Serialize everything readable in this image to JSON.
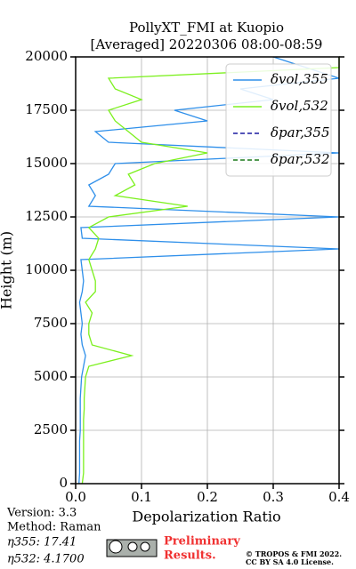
{
  "chart_data": {
    "type": "line",
    "title": "PollyXT_FMI at Kuopio",
    "subtitle": "[Averaged] 20220306 08:00-08:59",
    "xlabel": "Depolarization Ratio",
    "ylabel": "Height (m)",
    "y": [
      0,
      500,
      1000,
      1500,
      2000,
      2500,
      3000,
      3500,
      4000,
      4500,
      5000,
      5500,
      6000,
      6500,
      7000,
      7500,
      8000,
      8500,
      9000,
      9500,
      10000,
      10500,
      11000,
      11500,
      12000,
      12500,
      13000,
      13500,
      14000,
      14500,
      15000,
      15500,
      16000,
      16500,
      17000,
      17500,
      18000,
      18500,
      19000,
      19500,
      20000
    ],
    "series": [
      {
        "name": "δvol,355",
        "color": "#2e8fea",
        "dashed": false,
        "values": [
          0.005,
          0.006,
          0.006,
          0.006,
          0.006,
          0.007,
          0.007,
          0.007,
          0.007,
          0.008,
          0.009,
          0.012,
          0.015,
          0.01,
          0.008,
          0.01,
          0.008,
          0.006,
          0.01,
          0.012,
          0.01,
          0.008,
          0.4,
          0.01,
          0.008,
          0.4,
          0.02,
          0.03,
          0.02,
          0.05,
          0.06,
          0.4,
          0.05,
          0.03,
          0.2,
          0.15,
          0.3,
          0.25,
          0.4,
          0.35,
          0.3
        ]
      },
      {
        "name": "δvol,532",
        "color": "#7cf01e",
        "dashed": false,
        "values": [
          0.01,
          0.012,
          0.012,
          0.012,
          0.012,
          0.012,
          0.012,
          0.013,
          0.013,
          0.014,
          0.015,
          0.02,
          0.085,
          0.025,
          0.02,
          0.02,
          0.025,
          0.015,
          0.03,
          0.03,
          0.025,
          0.02,
          0.03,
          0.035,
          0.02,
          0.05,
          0.17,
          0.06,
          0.09,
          0.08,
          0.12,
          0.2,
          0.1,
          0.08,
          0.06,
          0.05,
          0.1,
          0.06,
          0.05,
          0.4,
          0.4
        ]
      },
      {
        "name": "δpar,355",
        "color": "#1a1aa0",
        "dashed": true,
        "values": [
          null,
          null,
          null,
          null,
          null,
          null,
          null,
          null,
          null,
          null,
          null,
          null,
          null,
          null,
          null,
          null,
          null,
          null,
          null,
          null,
          null,
          null,
          null,
          null,
          null,
          null,
          null,
          null,
          null,
          null,
          null,
          null,
          null,
          null,
          null,
          null,
          null,
          null,
          null,
          null,
          null
        ]
      },
      {
        "name": "δpar,532",
        "color": "#1a7a1a",
        "dashed": true,
        "values": [
          null,
          null,
          null,
          null,
          null,
          null,
          null,
          null,
          null,
          null,
          null,
          null,
          null,
          null,
          null,
          null,
          null,
          null,
          null,
          null,
          null,
          null,
          null,
          null,
          null,
          null,
          null,
          null,
          null,
          null,
          null,
          null,
          null,
          null,
          null,
          null,
          null,
          null,
          null,
          null,
          null
        ]
      }
    ],
    "xlim": [
      0,
      0.4
    ],
    "xticks": [
      {
        "value": 0,
        "label": "0.0"
      },
      0.1,
      0.2,
      0.3,
      0.4
    ],
    "ylim": [
      0,
      20000
    ],
    "yticks": [
      0,
      2500,
      5000,
      7500,
      10000,
      12500,
      15000,
      17500,
      20000
    ],
    "grid": true,
    "legend": "upper right"
  },
  "footer": {
    "version": "Version: 3.3",
    "method": "Method: Raman",
    "eta355": "η355:  17.41",
    "eta532": "η532: 4.1700",
    "preliminary1": "Preliminary",
    "preliminary2": "Results.",
    "copyright1": "© TROPOS & FMI 2022.",
    "copyright2": "CC BY SA 4.0 License."
  }
}
